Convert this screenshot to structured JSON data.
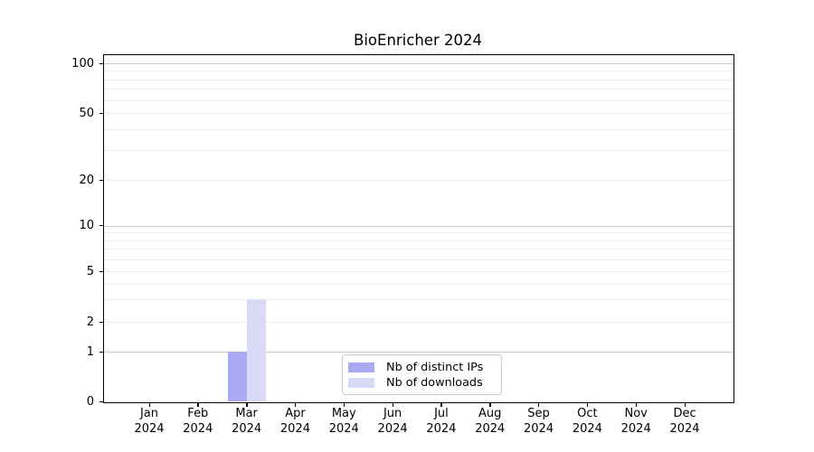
{
  "chart_data": {
    "type": "bar",
    "title": "BioEnricher 2024",
    "categories": [
      "Jan 2024",
      "Feb 2024",
      "Mar 2024",
      "Apr 2024",
      "May 2024",
      "Jun 2024",
      "Jul 2024",
      "Aug 2024",
      "Sep 2024",
      "Oct 2024",
      "Nov 2024",
      "Dec 2024"
    ],
    "series": [
      {
        "name": "Nb of distinct IPs",
        "color": "#a9a9f4",
        "values": [
          0,
          0,
          1,
          0,
          0,
          0,
          0,
          0,
          0,
          0,
          0,
          0
        ]
      },
      {
        "name": "Nb of downloads",
        "color": "#d9d9f8",
        "values": [
          0,
          0,
          3,
          0,
          0,
          0,
          0,
          0,
          0,
          0,
          0,
          0
        ]
      }
    ],
    "xlabel": "",
    "ylabel": "",
    "yscale": "symlog",
    "ylim": [
      0,
      115
    ],
    "ytick_labels": [
      100,
      50,
      20,
      10,
      5,
      2,
      1,
      0
    ],
    "gridlines": {
      "major": [
        1,
        10,
        100
      ],
      "minor": [
        2,
        3,
        4,
        5,
        6,
        7,
        8,
        9,
        20,
        30,
        40,
        50,
        60,
        70,
        80,
        90
      ]
    },
    "grid": "horizontal",
    "legend_position": "lower center",
    "colors": {
      "spine": "#000000",
      "grid_major": "#c9c9c9",
      "grid_minor": "#ececec",
      "text": "#000000",
      "legend_border": "#cccccc",
      "background": "#ffffff"
    }
  }
}
